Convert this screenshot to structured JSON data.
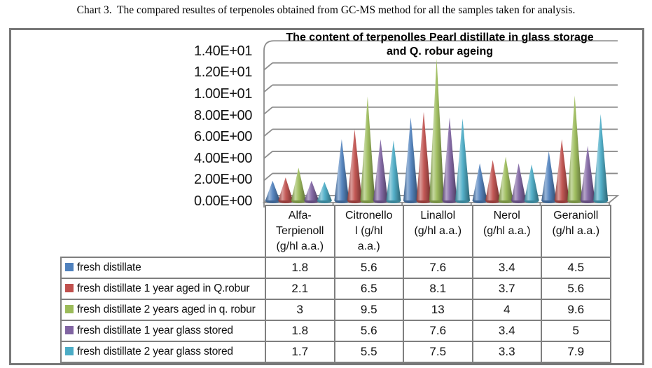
{
  "caption": "Chart 3.  The compared resultes of terpenoles obtained from GC-MS method for all the samples taken for analysis.",
  "chart_data": {
    "type": "bar",
    "bar_shape": "cone-3d",
    "title": "The content of terpenolles Pearl distillate in glass storage\nand Q. robur ageing",
    "categories": [
      "Alfa-\nTerpienoll\n(g/hl a.a.)",
      "Citronello\nl (g/hl\na.a.)",
      "Linallol\n(g/hl a.a.)",
      "Nerol\n(g/hl a.a.)",
      "Geranioll\n(g/hl a.a.)"
    ],
    "series": [
      {
        "name": "fresh distillate",
        "color": "#4F81BD",
        "values": [
          1.8,
          5.6,
          7.6,
          3.4,
          4.5
        ]
      },
      {
        "name": "fresh distillate 1 year aged in Q.robur",
        "color": "#C0504D",
        "values": [
          2.1,
          6.5,
          8.1,
          3.7,
          5.6
        ]
      },
      {
        "name": "fresh distillate 2 years aged in q. robur",
        "color": "#9BBB59",
        "values": [
          3,
          9.5,
          13,
          4,
          9.6
        ]
      },
      {
        "name": "fresh distillate 1 year glass stored",
        "color": "#8064A2",
        "values": [
          1.8,
          5.6,
          7.6,
          3.4,
          5
        ]
      },
      {
        "name": "fresh distillate 2 year glass stored",
        "color": "#4BACC6",
        "values": [
          1.7,
          5.5,
          7.5,
          3.3,
          7.9
        ]
      }
    ],
    "y_ticks": [
      "0.00E+00",
      "2.00E+00",
      "4.00E+00",
      "6.00E+00",
      "8.00E+00",
      "1.00E+01",
      "1.20E+01",
      "1.40E+01"
    ],
    "ylim": [
      0,
      14
    ],
    "grid": true,
    "grid_color": "#8C8C8C",
    "legend_position": "table-left",
    "table_border_color": "#7f7f7f"
  }
}
